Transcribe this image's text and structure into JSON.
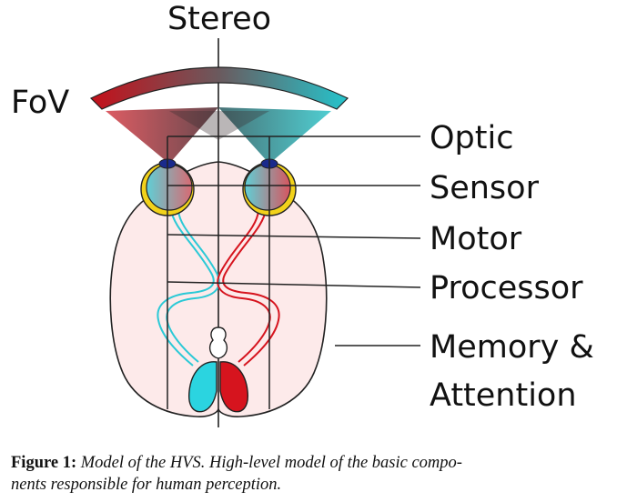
{
  "diagram": {
    "labels": {
      "stereo": "Stereo",
      "fov": "FoV",
      "optic": "Optic",
      "sensor": "Sensor",
      "motor": "Motor",
      "processor": "Processor",
      "memory_line1": "Memory &",
      "memory_line2": "Attention"
    },
    "colors": {
      "left_pathway": "#2bc9d6",
      "right_pathway": "#d6141e",
      "brain_fill": "#fdeaea",
      "pupil": "#1a2a8c",
      "retina": "#f2d21a"
    }
  },
  "caption": {
    "label": "Figure 1:",
    "text": "Model of the HVS. High-level model of the basic compo-",
    "text2": "nents responsible for human perception."
  }
}
